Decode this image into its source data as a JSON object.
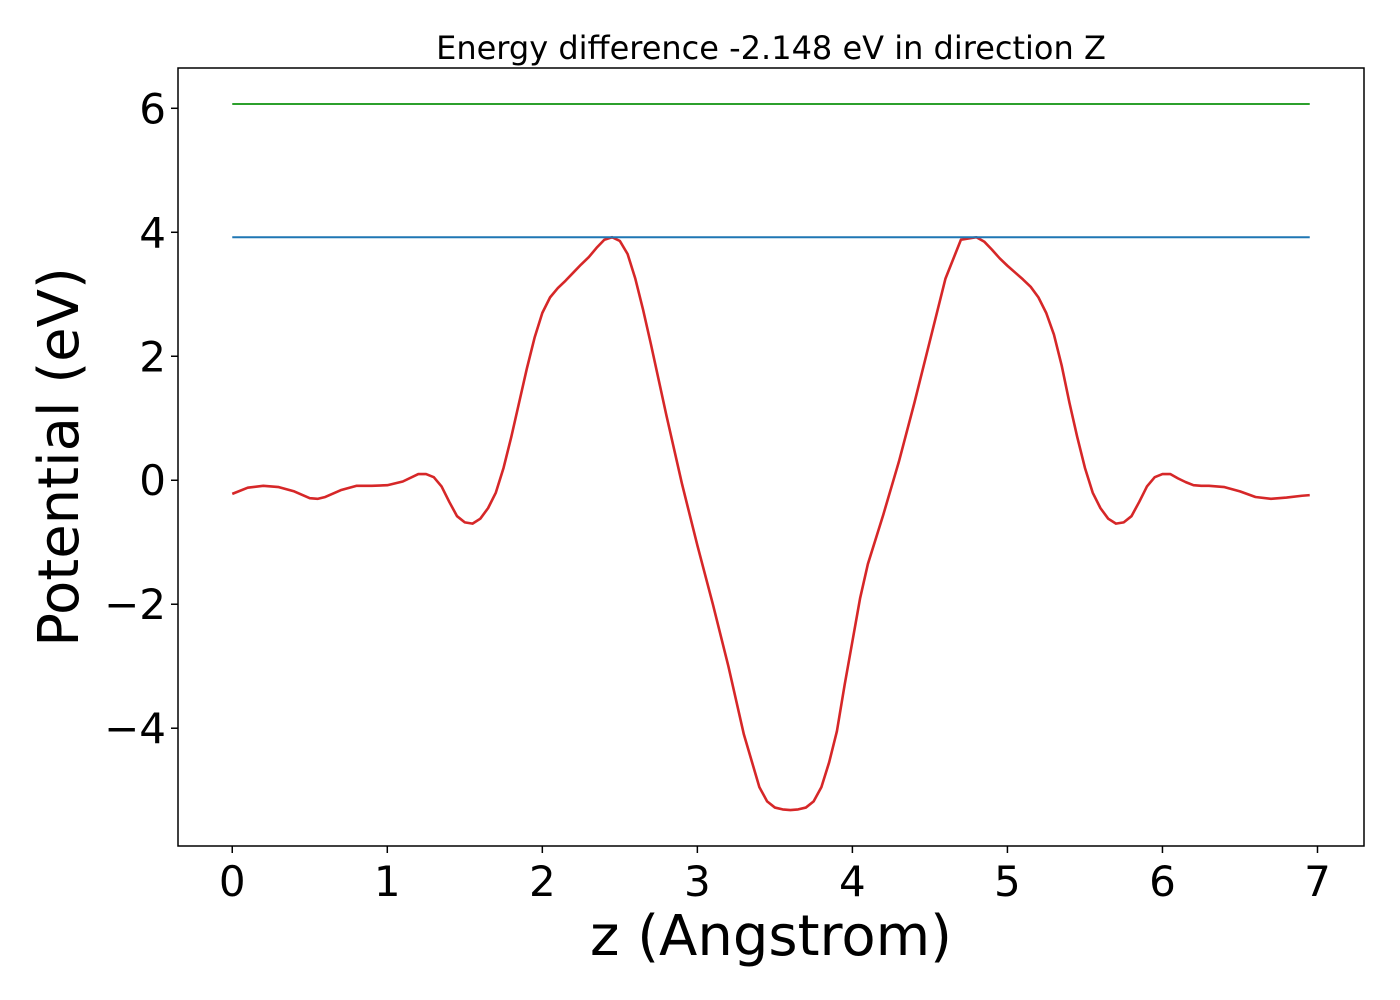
{
  "chart_data": {
    "type": "line",
    "title": "Energy difference -2.148 eV in direction Z",
    "xlabel": "z (Angstrom)",
    "ylabel": "Potential (eV)",
    "xlim": [
      -0.35,
      7.3
    ],
    "ylim": [
      -5.9,
      6.65
    ],
    "xticks": [
      0,
      1,
      2,
      3,
      4,
      5,
      6,
      7
    ],
    "yticks": [
      -4,
      -2,
      0,
      2,
      4,
      6
    ],
    "xtick_labels": [
      "0",
      "1",
      "2",
      "3",
      "4",
      "5",
      "6",
      "7"
    ],
    "ytick_labels": [
      "−4",
      "−2",
      "0",
      "2",
      "4",
      "6"
    ],
    "grid": false,
    "series": [
      {
        "color": "#d62728",
        "x": [
          0,
          0.1,
          0.2,
          0.3,
          0.4,
          0.5,
          0.55,
          0.6,
          0.7,
          0.8,
          0.9,
          1.0,
          1.1,
          1.2,
          1.25,
          1.3,
          1.35,
          1.4,
          1.45,
          1.5,
          1.55,
          1.6,
          1.65,
          1.7,
          1.75,
          1.8,
          1.85,
          1.9,
          1.95,
          2.0,
          2.05,
          2.1,
          2.15,
          2.2,
          2.25,
          2.3,
          2.35,
          2.4,
          2.45,
          2.5,
          2.55,
          2.6,
          2.65,
          2.7,
          2.8,
          2.9,
          3.0,
          3.1,
          3.2,
          3.3,
          3.4,
          3.45,
          3.5,
          3.55,
          3.6,
          3.65,
          3.7,
          3.75,
          3.8,
          3.85,
          3.9,
          3.95,
          4.0,
          4.05,
          4.1,
          4.2,
          4.3,
          4.4,
          4.5,
          4.6,
          4.7,
          4.8,
          4.85,
          4.9,
          4.95,
          5.0,
          5.05,
          5.1,
          5.15,
          5.2,
          5.25,
          5.3,
          5.35,
          5.4,
          5.45,
          5.5,
          5.55,
          5.6,
          5.65,
          5.7,
          5.75,
          5.8,
          5.85,
          5.9,
          5.95,
          6.0,
          6.05,
          6.1,
          6.15,
          6.2,
          6.25,
          6.3,
          6.4,
          6.5,
          6.6,
          6.7,
          6.8,
          6.9,
          6.95
        ],
        "y": [
          -0.22,
          -0.12,
          -0.09,
          -0.11,
          -0.18,
          -0.29,
          -0.3,
          -0.27,
          -0.16,
          -0.09,
          -0.09,
          -0.08,
          -0.02,
          0.1,
          0.1,
          0.05,
          -0.1,
          -0.35,
          -0.58,
          -0.68,
          -0.7,
          -0.62,
          -0.45,
          -0.2,
          0.2,
          0.7,
          1.25,
          1.8,
          2.3,
          2.7,
          2.95,
          3.1,
          3.22,
          3.35,
          3.48,
          3.6,
          3.75,
          3.88,
          3.92,
          3.86,
          3.65,
          3.25,
          2.75,
          2.2,
          1.05,
          -0.05,
          -1.05,
          -2.0,
          -3.0,
          -4.1,
          -4.95,
          -5.18,
          -5.28,
          -5.31,
          -5.32,
          -5.31,
          -5.28,
          -5.18,
          -4.95,
          -4.55,
          -4.05,
          -3.3,
          -2.6,
          -1.9,
          -1.35,
          -0.55,
          0.3,
          1.25,
          2.25,
          3.25,
          3.88,
          3.92,
          3.85,
          3.72,
          3.58,
          3.46,
          3.35,
          3.24,
          3.12,
          2.95,
          2.7,
          2.35,
          1.85,
          1.25,
          0.7,
          0.2,
          -0.2,
          -0.45,
          -0.62,
          -0.7,
          -0.68,
          -0.58,
          -0.35,
          -0.1,
          0.05,
          0.1,
          0.1,
          0.03,
          -0.03,
          -0.08,
          -0.09,
          -0.09,
          -0.11,
          -0.18,
          -0.27,
          -0.3,
          -0.28,
          -0.25,
          -0.24
        ]
      },
      {
        "color": "#1f77b4",
        "x": [
          0,
          6.95
        ],
        "y": [
          3.92,
          3.92
        ]
      },
      {
        "color": "#2ca02c",
        "x": [
          0,
          6.95
        ],
        "y": [
          6.07,
          6.07
        ]
      }
    ]
  }
}
